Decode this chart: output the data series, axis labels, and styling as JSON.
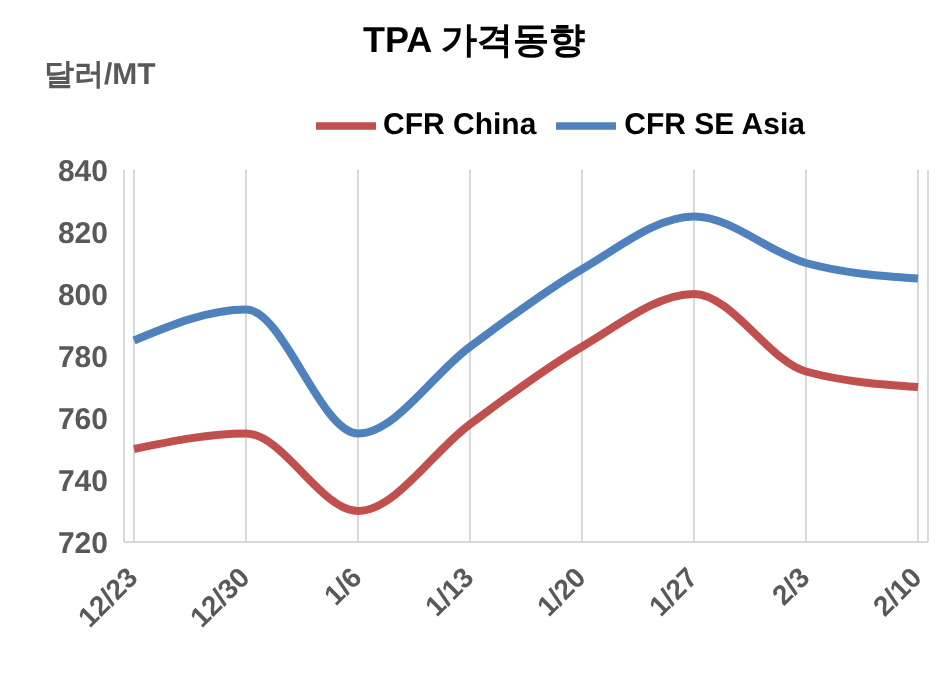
{
  "chart_data": {
    "type": "line",
    "title": "TPA 가격동향",
    "ylabel": "달러/MT",
    "categories": [
      "12/23",
      "12/30",
      "1/6",
      "1/13",
      "1/20",
      "1/27",
      "2/3",
      "2/10"
    ],
    "series": [
      {
        "name": "CFR China",
        "color": "#c0504d",
        "values": [
          750,
          755,
          730,
          758,
          783,
          800,
          775,
          770
        ]
      },
      {
        "name": "CFR SE Asia",
        "color": "#4f81bd",
        "values": [
          785,
          795,
          755,
          783,
          808,
          825,
          810,
          805
        ]
      }
    ],
    "ylim": [
      720,
      840
    ],
    "yticks": [
      720,
      740,
      760,
      780,
      800,
      820,
      840
    ],
    "grid": "x",
    "legend": "top",
    "marker": "none",
    "line_style": "solid"
  }
}
